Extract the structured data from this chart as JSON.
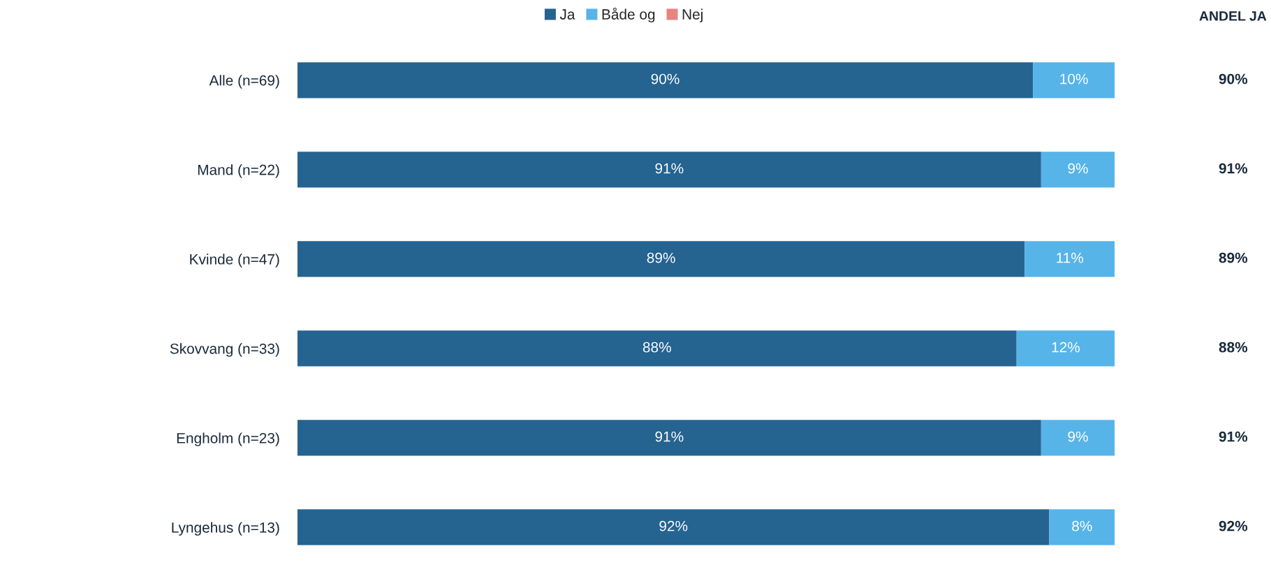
{
  "chart_data": {
    "type": "bar",
    "orientation": "horizontal",
    "stacked": true,
    "categories": [
      "Alle (n=69)",
      "Mand (n=22)",
      "Kvinde (n=47)",
      "Skovvang (n=33)",
      "Engholm (n=23)",
      "Lyngehus (n=13)"
    ],
    "series": [
      {
        "name": "Ja",
        "color": "#256390",
        "values": [
          90,
          91,
          89,
          88,
          91,
          92
        ],
        "value_labels": [
          "90%",
          "91%",
          "89%",
          "88%",
          "91%",
          "92%"
        ]
      },
      {
        "name": "Både og",
        "color": "#56b4e9",
        "values": [
          10,
          9,
          11,
          12,
          9,
          8
        ],
        "value_labels": [
          "10%",
          "9%",
          "11%",
          "12%",
          "9%",
          "8%"
        ]
      },
      {
        "name": "Nej",
        "color": "#e8837f",
        "values": [
          0,
          0,
          0,
          0,
          0,
          0
        ],
        "value_labels": [
          null,
          null,
          null,
          null,
          null,
          null
        ]
      }
    ],
    "tick_labels": "y",
    "legend": "top",
    "annotations": [
      "ANDEL JA",
      "90%",
      "91%",
      "89%",
      "88%",
      "91%",
      "92%"
    ]
  }
}
